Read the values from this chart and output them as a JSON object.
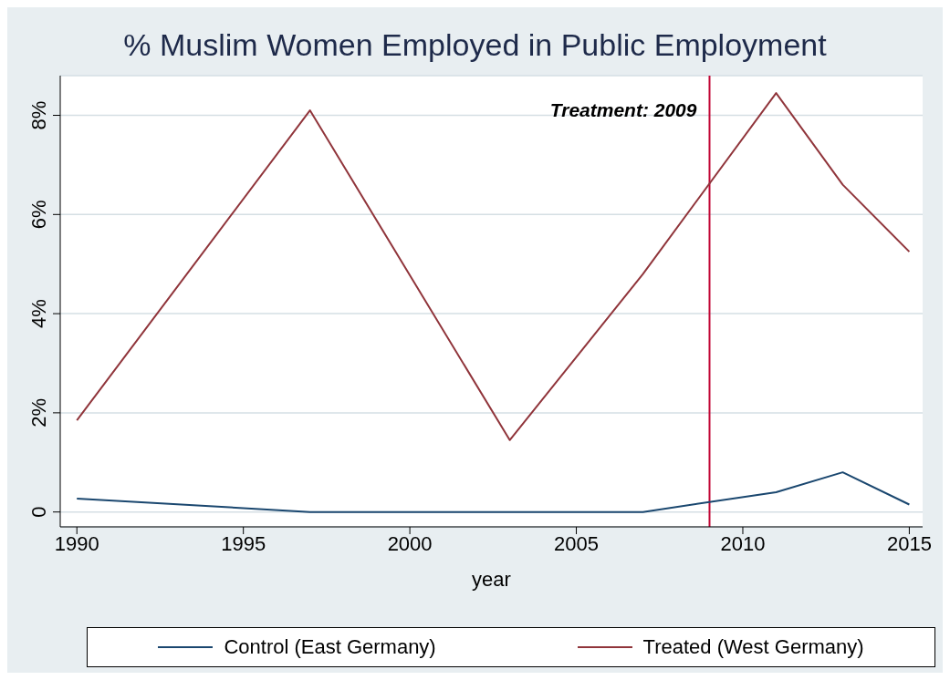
{
  "chart_data": {
    "type": "line",
    "title": "% Muslim Women Employed in Public Employment",
    "xlabel": "year",
    "x": [
      1990,
      1997,
      2003,
      2007,
      2011,
      2013,
      2015
    ],
    "series": [
      {
        "name": "Control (East Germany)",
        "color": "#1a476f",
        "values": [
          0.27,
          0,
          0,
          0,
          0.4,
          0.8,
          0.15
        ]
      },
      {
        "name": "Treated (West Germany)",
        "color": "#90353b",
        "values": [
          1.85,
          8.1,
          1.45,
          4.8,
          8.45,
          6.6,
          5.25
        ]
      }
    ],
    "xlim": [
      1989.5,
      2015.4
    ],
    "xticks": [
      1990,
      1995,
      2000,
      2005,
      2010,
      2015
    ],
    "ylim": [
      -0.3,
      8.8
    ],
    "yticks": [
      {
        "value": 0,
        "label": "0"
      },
      {
        "value": 2,
        "label": "2%"
      },
      {
        "value": 4,
        "label": "4%"
      },
      {
        "value": 6,
        "label": "6%"
      },
      {
        "value": 8,
        "label": "8%"
      }
    ],
    "ref_lines": [
      {
        "axis": "x",
        "value": 2009,
        "label": "Treatment: 2009",
        "color": "#c10534"
      }
    ],
    "grid": "y",
    "legend": "bottom",
    "marker": "none",
    "line_style": "solid"
  }
}
